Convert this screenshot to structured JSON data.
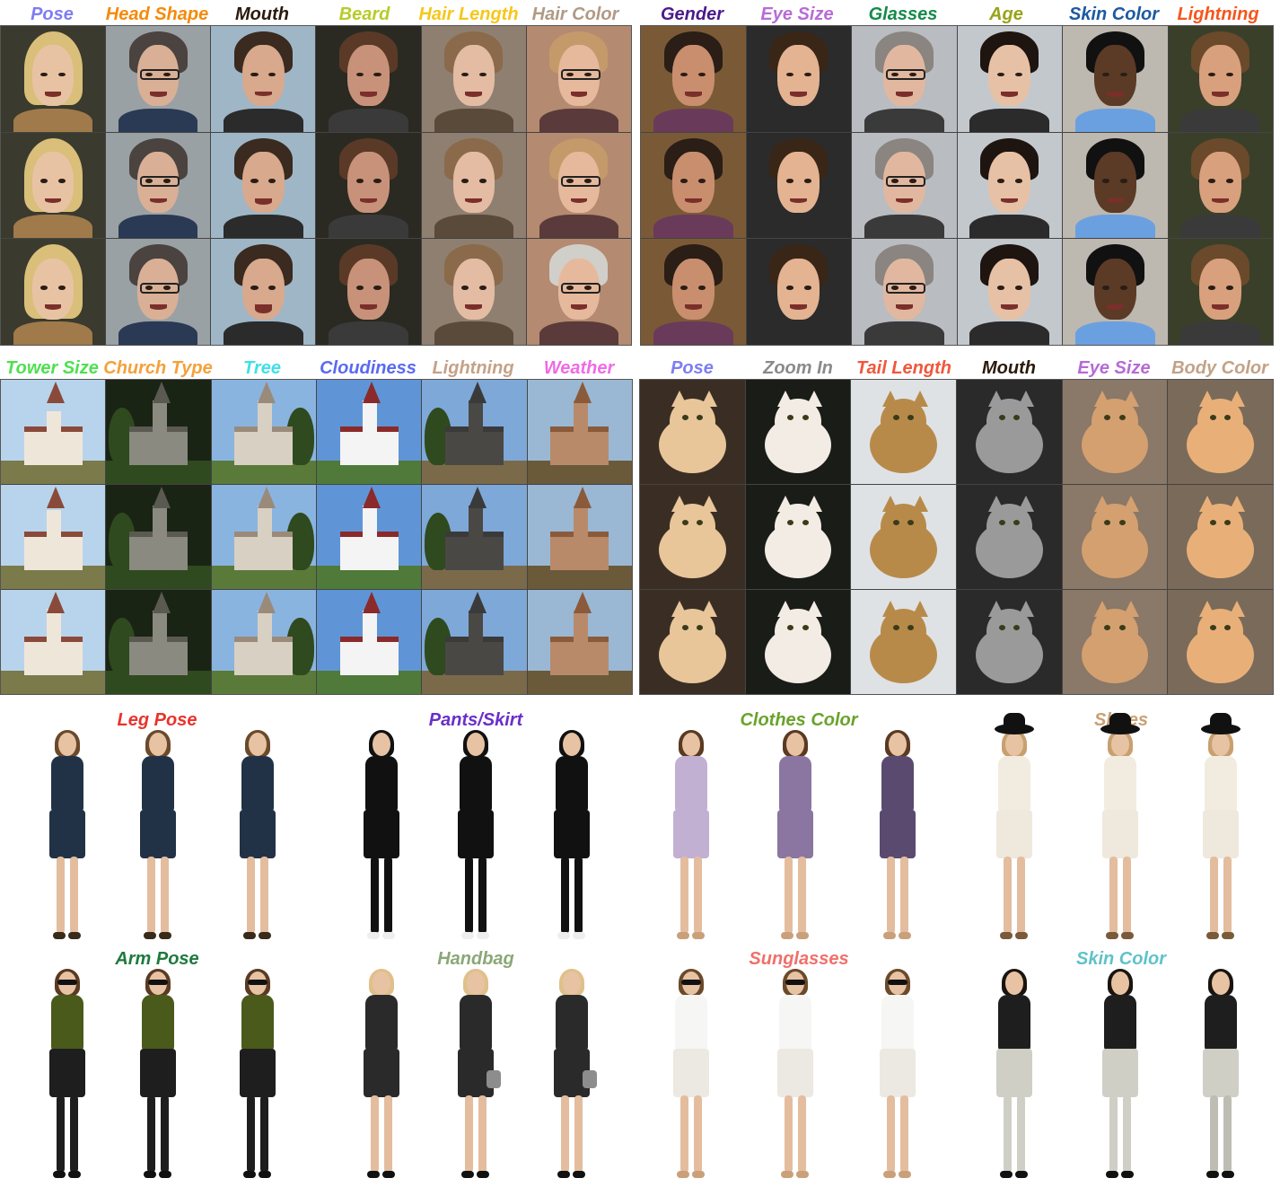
{
  "faces": {
    "left": [
      {
        "label": "Pose",
        "color": "#7f7cf5"
      },
      {
        "label": "Head Shape",
        "color": "#f58a0a"
      },
      {
        "label": "Mouth",
        "color": "#2b1a0d"
      },
      {
        "label": "Beard",
        "color": "#b6cc2a"
      },
      {
        "label": "Hair Length",
        "color": "#f6c71b"
      },
      {
        "label": "Hair Color",
        "color": "#b09a86"
      }
    ],
    "right": [
      {
        "label": "Gender",
        "color": "#4b1a8a"
      },
      {
        "label": "Eye Size",
        "color": "#b86bd6"
      },
      {
        "label": "Glasses",
        "color": "#158a4a"
      },
      {
        "label": "Age",
        "color": "#97a318"
      },
      {
        "label": "Skin Color",
        "color": "#1c5aa0"
      },
      {
        "label": "Lightning",
        "color": "#f5561c"
      }
    ]
  },
  "churches": [
    {
      "label": "Tower Size",
      "color": "#4fe04f"
    },
    {
      "label": "Church Type",
      "color": "#f4a13a"
    },
    {
      "label": "Tree",
      "color": "#3fe0e8"
    },
    {
      "label": "Cloudiness",
      "color": "#5a6af0"
    },
    {
      "label": "Lightning",
      "color": "#c4a287"
    },
    {
      "label": "Weather",
      "color": "#f06ae6"
    }
  ],
  "cats": [
    {
      "label": "Pose",
      "color": "#7d7ef2"
    },
    {
      "label": "Zoom In",
      "color": "#8a8a8a"
    },
    {
      "label": "Tail Length",
      "color": "#f0583c"
    },
    {
      "label": "Mouth",
      "color": "#2a1a0d"
    },
    {
      "label": "Eye Size",
      "color": "#b56bd4"
    },
    {
      "label": "Body Color",
      "color": "#c2a287"
    }
  ],
  "fashion_row1": [
    {
      "label": "Leg Pose",
      "color": "#e8332c"
    },
    {
      "label": "Pants/Skirt",
      "color": "#6a2fc9"
    },
    {
      "label": "Clothes Color",
      "color": "#69a32a"
    },
    {
      "label": "Shoes",
      "color": "#c9a072"
    }
  ],
  "fashion_row2": [
    {
      "label": "Arm Pose",
      "color": "#1e7a3c"
    },
    {
      "label": "Handbag",
      "color": "#8aa876"
    },
    {
      "label": "Sunglasses",
      "color": "#f0706a"
    },
    {
      "label": "Skin Color",
      "color": "#5fc2c9"
    }
  ]
}
